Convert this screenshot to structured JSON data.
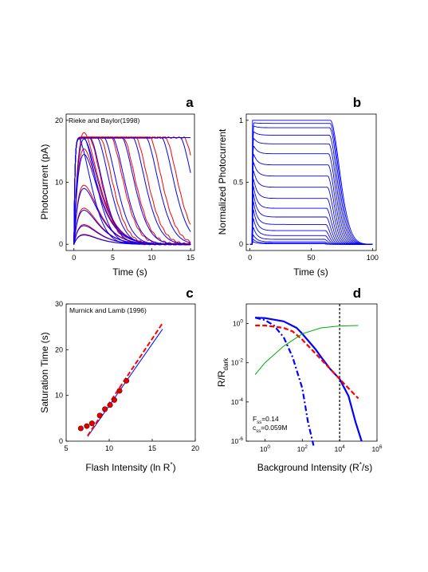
{
  "chart_data": [
    {
      "panel": "a",
      "type": "line",
      "annotation": "Rieke and Baylor(1998)",
      "xlabel": "Time (s)",
      "ylabel": "Photocurrent (pA)",
      "xlim": [
        -1,
        15.5
      ],
      "ylim": [
        -1,
        21
      ],
      "xticks": [
        "0",
        "5",
        "10",
        "15"
      ],
      "yticks": [
        "0",
        "10",
        "20"
      ],
      "colors": {
        "model": "#0000ff",
        "data": "#ff0000"
      },
      "model_saturation_times": [
        0.6,
        1.3,
        2.1,
        3.0,
        3.9,
        5.0,
        6.2,
        7.6,
        9.3,
        11.3,
        13.7,
        16.5
      ],
      "data_saturation_times": [
        2.0,
        3.4,
        4.8,
        6.4,
        8.0,
        9.8,
        11.8,
        14.2
      ],
      "peak_amplitudes": [
        1.5,
        3.0,
        5.5,
        9.0,
        14.5,
        17.0
      ]
    },
    {
      "panel": "b",
      "type": "line",
      "xlabel": "Time (s)",
      "ylabel": "Normalized Photocurrent",
      "xlim": [
        -3,
        103
      ],
      "ylim": [
        -0.05,
        1.05
      ],
      "xticks": [
        "0",
        "50",
        "100"
      ],
      "yticks": [
        "0",
        "0.5",
        "1"
      ],
      "step_on": 2,
      "step_off": 60,
      "steady_levels": [
        0.005,
        0.01,
        0.02,
        0.04,
        0.07,
        0.11,
        0.16,
        0.22,
        0.29,
        0.37,
        0.46,
        0.55,
        0.64,
        0.73,
        0.81,
        0.88,
        0.94,
        0.975,
        1.0
      ]
    },
    {
      "panel": "c",
      "type": "scatter",
      "annotation": "Murnick and Lamb (1996)",
      "xlabel": "Flash Intensity (ln R*)",
      "ylabel": "Saturation Time (s)",
      "xlim": [
        5,
        20
      ],
      "ylim": [
        0,
        30
      ],
      "xticks": [
        "5",
        "10",
        "15",
        "20"
      ],
      "yticks": [
        "0",
        "10",
        "20",
        "30"
      ],
      "points": {
        "x": [
          6.7,
          7.4,
          8.0,
          8.9,
          9.5,
          10.1,
          10.6,
          11.2,
          12.0
        ],
        "y": [
          2.8,
          3.3,
          3.9,
          5.6,
          7.0,
          7.9,
          9.0,
          11.0,
          13.2
        ]
      },
      "model_line": {
        "x": [
          7.5,
          16.2
        ],
        "y": [
          1.0,
          24.5
        ]
      },
      "fit_line": {
        "x": [
          7.5,
          16.2
        ],
        "y": [
          1.2,
          25.8
        ]
      }
    },
    {
      "panel": "d",
      "type": "line",
      "xlabel": "Background Intensity (R*/s)",
      "ylabel": "R/Rdark",
      "xscale": "log",
      "yscale": "log",
      "xlim": [
        0.1,
        1000000
      ],
      "ylim": [
        1e-06,
        10
      ],
      "xticks": [
        "10^0",
        "10^2",
        "10^4",
        "10^6"
      ],
      "yticks": [
        "10^0",
        "10^-2",
        "10^-4",
        "10^-6"
      ],
      "annotations": [
        "F_ss=0.14",
        "c_ss=0.059M"
      ],
      "vertical_line_x": 10000,
      "series": [
        {
          "color": "#0000ff",
          "style": "solid",
          "x": [
            0.3,
            1,
            10,
            50,
            100,
            500,
            1000,
            3000,
            10000,
            30000,
            70000,
            150000
          ],
          "y": [
            2.0,
            1.9,
            1.3,
            0.6,
            0.3,
            0.05,
            0.02,
            0.005,
            0.0015,
            0.0002,
            1e-05,
            1e-06
          ]
        },
        {
          "color": "#0000ff",
          "style": "dashdot",
          "x": [
            0.3,
            1,
            3,
            10,
            30,
            100,
            200,
            400
          ],
          "y": [
            2.0,
            1.5,
            0.8,
            0.2,
            0.02,
            0.0005,
            1e-05,
            6e-07
          ]
        },
        {
          "color": "#ff0000",
          "style": "dashed",
          "x": [
            0.3,
            1,
            10,
            30,
            100,
            300,
            1000,
            3000,
            10000,
            30000,
            100000
          ],
          "y": [
            0.8,
            0.8,
            0.6,
            0.4,
            0.15,
            0.05,
            0.015,
            0.005,
            0.0015,
            0.0005,
            0.00015
          ]
        },
        {
          "color": "#00b000",
          "style": "solid",
          "x": [
            0.3,
            1,
            10,
            100,
            1000,
            10000,
            100000
          ],
          "y": [
            0.0025,
            0.01,
            0.07,
            0.3,
            0.6,
            0.75,
            0.8
          ]
        }
      ]
    }
  ]
}
